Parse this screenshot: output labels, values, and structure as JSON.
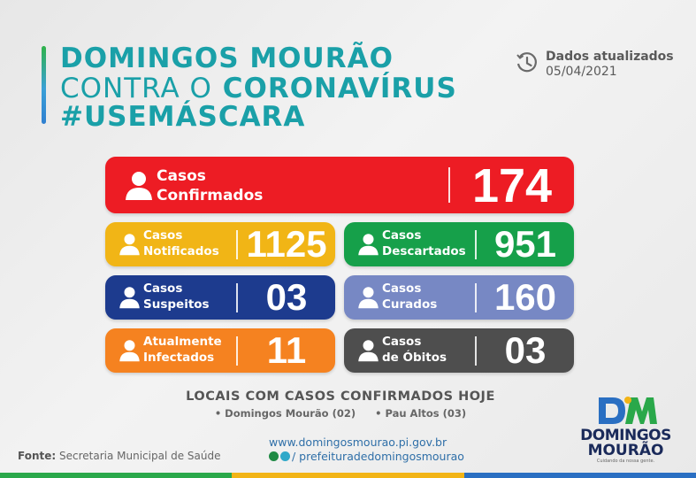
{
  "header": {
    "line1": "DOMINGOS MOURÃO",
    "line2_thin": "CONTRA O",
    "line2_bold": "CORONAVÍRUS",
    "line3": "#USEMÁSCARA"
  },
  "updated": {
    "label": "Dados atualizados",
    "date": "05/04/2021",
    "icon": "clock-icon"
  },
  "cards": {
    "confirmados": {
      "line1": "Casos",
      "line2": "Confirmados",
      "value": "174",
      "color": "#ed1c24"
    },
    "notificados": {
      "line1": "Casos",
      "line2": "Notificados",
      "value": "1125",
      "color": "#f1b516"
    },
    "descartados": {
      "line1": "Casos",
      "line2": "Descartados",
      "value": "951",
      "color": "#16a04a"
    },
    "suspeitos": {
      "line1": "Casos",
      "line2": "Suspeitos",
      "value": "03",
      "color": "#1d3b8e"
    },
    "curados": {
      "line1": "Casos",
      "line2": "Curados",
      "value": "160",
      "color": "#7788c4"
    },
    "infectados": {
      "line1": "Atualmente",
      "line2": "Infectados",
      "value": "11",
      "color": "#f58220"
    },
    "obitos": {
      "line1": "Casos",
      "line2": "de Óbitos",
      "value": "03",
      "color": "#4e4e4e"
    }
  },
  "locais": {
    "title": "LOCAIS COM CASOS CONFIRMADOS HOJE",
    "items": [
      "• Domingos Mourão (02)",
      "• Pau Altos (03)"
    ]
  },
  "footer": {
    "fonte_label": "Fonte:",
    "fonte_text": "Secretaria Municipal de Saúde",
    "site": "www.domingosmourao.pi.gov.br",
    "social": "/ prefeituradedomingosmourao",
    "logo_line1": "DOMINGOS",
    "logo_line2": "MOURÃO",
    "logo_tag": "Cuidando da nossa gente."
  }
}
